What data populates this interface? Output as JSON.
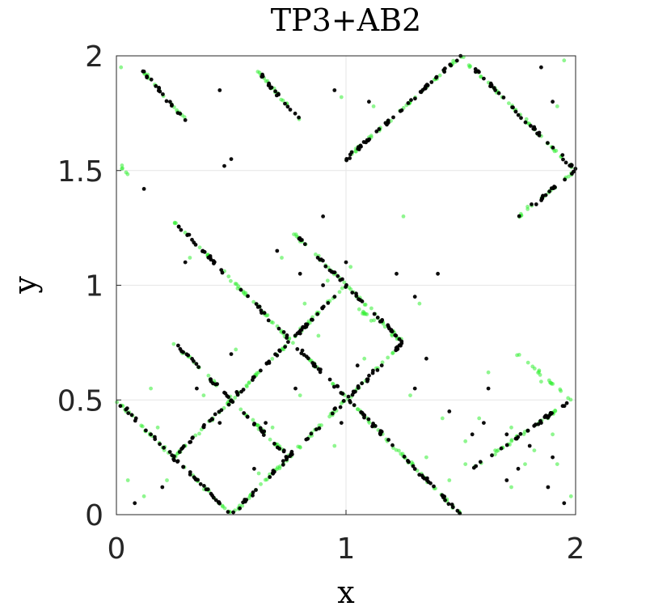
{
  "chart_data": {
    "type": "scatter",
    "title": "TP3+AB2",
    "xlabel": "x",
    "ylabel": "y",
    "xlim": [
      0,
      2
    ],
    "ylim": [
      0,
      2
    ],
    "xticks": [
      0,
      1,
      2
    ],
    "yticks": [
      0,
      0.5,
      1,
      1.5,
      2
    ],
    "xtick_labels": [
      "0",
      "1",
      "2"
    ],
    "ytick_labels": [
      "0",
      "0.5",
      "1",
      "1.5",
      "2"
    ],
    "grid": true,
    "legend": "none",
    "series": [
      {
        "color": "#000000",
        "segments": [
          [
            [
              0.25,
              1.28
            ],
            [
              1.5,
              0.0
            ]
          ],
          [
            [
              0.0,
              0.5
            ],
            [
              0.5,
              0.0
            ]
          ],
          [
            [
              0.25,
              0.25
            ],
            [
              1.0,
              1.0
            ]
          ],
          [
            [
              0.25,
              0.75
            ],
            [
              0.75,
              0.25
            ]
          ],
          [
            [
              0.5,
              0.0
            ],
            [
              1.25,
              0.75
            ]
          ],
          [
            [
              0.75,
              1.25
            ],
            [
              1.25,
              0.75
            ]
          ],
          [
            [
              1.0,
              1.55
            ],
            [
              1.5,
              2.0
            ]
          ],
          [
            [
              1.5,
              2.0
            ],
            [
              2.0,
              1.5
            ]
          ],
          [
            [
              1.75,
              1.3
            ],
            [
              2.0,
              1.5
            ]
          ],
          [
            [
              0.1,
              1.95
            ],
            [
              0.3,
              1.72
            ]
          ],
          [
            [
              0.6,
              1.95
            ],
            [
              0.8,
              1.72
            ]
          ],
          [
            [
              1.55,
              0.2
            ],
            [
              1.98,
              0.5
            ]
          ],
          [
            [
              1.0,
              1.55
            ],
            [
              1.12,
              1.65
            ]
          ]
        ],
        "scattered": [
          [
            0.9,
            1.0
          ],
          [
            0.95,
            0.95
          ],
          [
            0.8,
            1.05
          ],
          [
            1.0,
            1.1
          ],
          [
            0.85,
            0.85
          ],
          [
            1.05,
            0.65
          ],
          [
            0.6,
            0.6
          ],
          [
            0.45,
            0.4
          ],
          [
            0.35,
            0.55
          ],
          [
            0.65,
            0.4
          ],
          [
            1.3,
            0.95
          ],
          [
            1.4,
            1.05
          ],
          [
            1.6,
            0.4
          ],
          [
            1.7,
            0.35
          ],
          [
            1.8,
            0.3
          ],
          [
            1.55,
            0.35
          ],
          [
            1.85,
            0.4
          ],
          [
            1.9,
            0.25
          ],
          [
            0.08,
            0.05
          ],
          [
            0.2,
            0.12
          ],
          [
            0.15,
            0.35
          ],
          [
            1.3,
            0.55
          ],
          [
            0.9,
            1.3
          ],
          [
            0.7,
            1.15
          ],
          [
            0.5,
            1.55
          ],
          [
            0.47,
            1.52
          ],
          [
            0.95,
            1.85
          ],
          [
            1.65,
            1.85
          ],
          [
            1.85,
            1.95
          ],
          [
            1.9,
            1.8
          ],
          [
            1.7,
            0.15
          ],
          [
            1.95,
            0.05
          ],
          [
            1.1,
            1.8
          ],
          [
            0.45,
            1.85
          ],
          [
            0.3,
            1.1
          ],
          [
            0.78,
            0.55
          ],
          [
            1.15,
            0.35
          ],
          [
            0.6,
            0.2
          ],
          [
            1.75,
            0.2
          ],
          [
            1.45,
            0.45
          ],
          [
            0.98,
            0.4
          ],
          [
            0.5,
            0.7
          ],
          [
            0.3,
            1.72
          ],
          [
            0.12,
            1.42
          ],
          [
            1.22,
            1.05
          ],
          [
            1.35,
            0.68
          ],
          [
            1.62,
            0.55
          ],
          [
            1.88,
            0.12
          ]
        ]
      },
      {
        "color": "#33ee33",
        "segments": [
          [
            [
              0.25,
              1.28
            ],
            [
              1.5,
              0.0
            ]
          ],
          [
            [
              0.0,
              0.5
            ],
            [
              0.5,
              0.0
            ]
          ],
          [
            [
              0.25,
              0.25
            ],
            [
              1.0,
              1.0
            ]
          ],
          [
            [
              0.25,
              0.75
            ],
            [
              0.75,
              0.25
            ]
          ],
          [
            [
              0.5,
              0.0
            ],
            [
              1.25,
              0.75
            ]
          ],
          [
            [
              0.75,
              1.25
            ],
            [
              1.25,
              0.75
            ]
          ],
          [
            [
              1.0,
              1.55
            ],
            [
              1.5,
              2.0
            ]
          ],
          [
            [
              1.5,
              2.0
            ],
            [
              2.0,
              1.5
            ]
          ],
          [
            [
              1.75,
              1.3
            ],
            [
              2.0,
              1.5
            ]
          ],
          [
            [
              0.1,
              1.95
            ],
            [
              0.3,
              1.72
            ]
          ],
          [
            [
              0.6,
              1.95
            ],
            [
              0.8,
              1.72
            ]
          ],
          [
            [
              1.55,
              0.2
            ],
            [
              1.98,
              0.5
            ]
          ],
          [
            [
              1.75,
              0.7
            ],
            [
              1.98,
              0.5
            ]
          ],
          [
            [
              1.05,
              0.9
            ],
            [
              1.25,
              0.75
            ]
          ],
          [
            [
              0.0,
              1.55
            ],
            [
              0.05,
              1.48
            ]
          ]
        ],
        "scattered": [
          [
            0.92,
            1.02
          ],
          [
            0.82,
            0.92
          ],
          [
            1.02,
            1.08
          ],
          [
            0.88,
            0.78
          ],
          [
            1.08,
            0.68
          ],
          [
            0.62,
            0.62
          ],
          [
            0.42,
            0.42
          ],
          [
            0.38,
            0.52
          ],
          [
            0.68,
            0.38
          ],
          [
            1.32,
            0.92
          ],
          [
            1.58,
            0.42
          ],
          [
            1.72,
            0.38
          ],
          [
            1.82,
            0.28
          ],
          [
            1.52,
            0.32
          ],
          [
            1.88,
            0.42
          ],
          [
            1.92,
            0.22
          ],
          [
            0.12,
            0.08
          ],
          [
            0.22,
            0.15
          ],
          [
            0.18,
            0.38
          ],
          [
            1.28,
            0.52
          ],
          [
            0.72,
            1.12
          ],
          [
            0.98,
            1.82
          ],
          [
            1.68,
            1.82
          ],
          [
            1.92,
            1.78
          ],
          [
            1.72,
            0.12
          ],
          [
            1.98,
            0.08
          ],
          [
            1.12,
            1.78
          ],
          [
            0.32,
            1.12
          ],
          [
            0.8,
            0.52
          ],
          [
            1.18,
            0.32
          ],
          [
            0.62,
            0.18
          ],
          [
            1.78,
            0.22
          ],
          [
            1.42,
            0.42
          ],
          [
            0.52,
            0.72
          ],
          [
            0.02,
            1.95
          ],
          [
            1.95,
            1.98
          ],
          [
            1.62,
            0.62
          ],
          [
            1.85,
            0.58
          ],
          [
            1.25,
            1.3
          ],
          [
            1.52,
            0.22
          ],
          [
            0.05,
            0.15
          ],
          [
            0.3,
            0.3
          ],
          [
            1.45,
            0.15
          ],
          [
            0.95,
            0.3
          ],
          [
            1.35,
            0.25
          ],
          [
            1.65,
            0.28
          ],
          [
            1.9,
            0.35
          ],
          [
            0.15,
            0.55
          ]
        ]
      }
    ]
  }
}
